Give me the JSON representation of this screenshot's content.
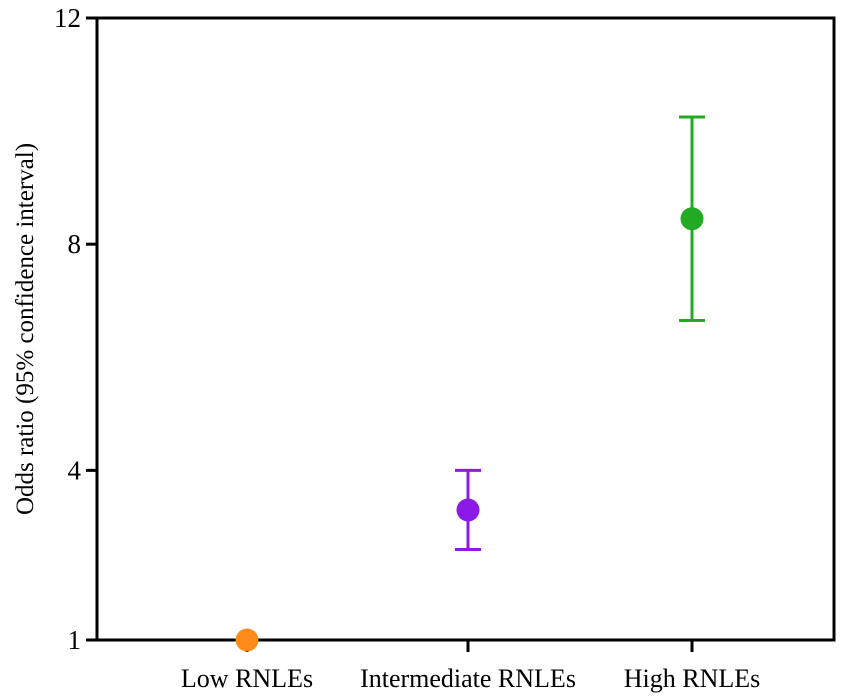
{
  "chart_data": {
    "type": "scatter",
    "title": "",
    "xlabel": "",
    "ylabel": "Odds ratio (95% confidence interval)",
    "ylim": [
      1,
      12
    ],
    "yticks": [
      1,
      4,
      8,
      12
    ],
    "grid": false,
    "legend": "none",
    "categories": [
      "Low RNLEs",
      "Intermediate RNLEs",
      "High RNLEs"
    ],
    "points": [
      {
        "category": "Low RNLEs",
        "value": 1.0,
        "lower": null,
        "upper": null,
        "color": "#FF8C1A"
      },
      {
        "category": "Intermediate RNLEs",
        "value": 3.3,
        "lower": 2.6,
        "upper": 4.0,
        "color": "#8B1AE8"
      },
      {
        "category": "High RNLEs",
        "value": 8.45,
        "lower": 6.65,
        "upper": 10.25,
        "color": "#22AA22"
      }
    ]
  }
}
